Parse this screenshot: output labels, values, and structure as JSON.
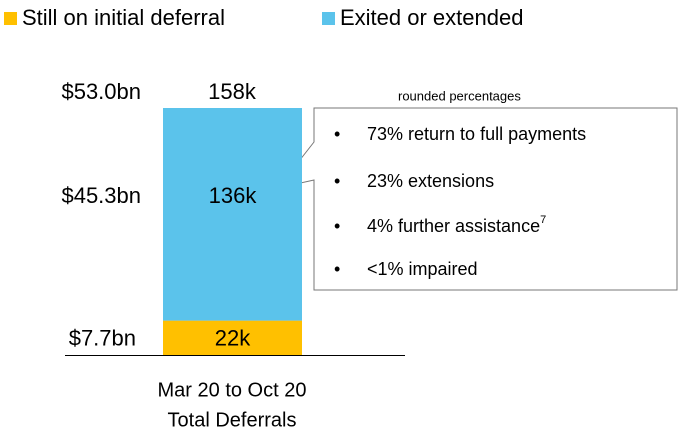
{
  "chart_data": {
    "type": "stacked_bar",
    "categories": [
      "Mar 20 to Oct 20"
    ],
    "category_sublabel": "Total Deferrals",
    "series": [
      {
        "name": "Still on initial deferral",
        "color": "#FFC000",
        "values": [
          22
        ],
        "value_labels": [
          "22k"
        ],
        "amount_label": "$7.7bn"
      },
      {
        "name": "Exited or extended",
        "color": "#5BC3EB",
        "values": [
          136
        ],
        "value_labels": [
          "136k"
        ],
        "amount_label": "$45.3bn"
      }
    ],
    "total_label": "158k",
    "total_amount_label": "$53.0bn",
    "callout": {
      "note": "rounded percentages",
      "items": [
        {
          "text": "73% return to full payments"
        },
        {
          "text": "23% extensions"
        },
        {
          "text": "4% further assistance",
          "sup": "7"
        },
        {
          "text": "<1%  impaired"
        }
      ]
    }
  }
}
